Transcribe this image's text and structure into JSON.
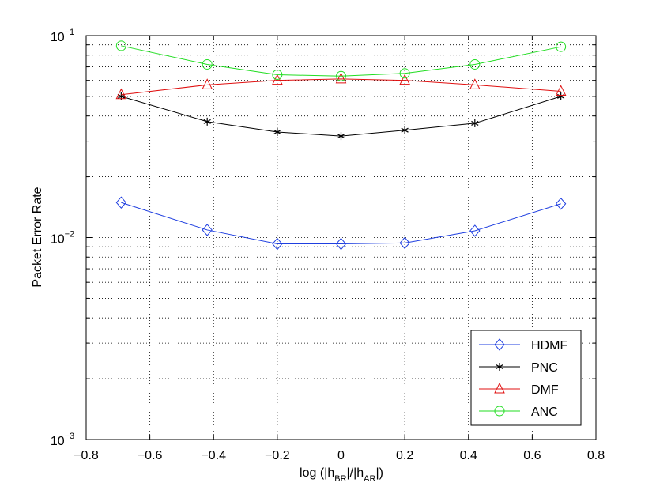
{
  "chart_data": {
    "type": "line",
    "title": "",
    "xlabel": {
      "main": "log (|h",
      "sub1": "BR",
      "mid": "|/|h",
      "sub2": "AR",
      "end": "|)"
    },
    "ylabel": "Packet Error Rate",
    "x_scale": "linear",
    "y_scale": "log",
    "xlim": [
      -0.8,
      0.8
    ],
    "ylim": [
      0.001,
      0.1
    ],
    "grid": true,
    "legend_position": "bottom-right",
    "x_ticks": [
      {
        "value": -0.8,
        "label": "−0.8"
      },
      {
        "value": -0.6,
        "label": "−0.6"
      },
      {
        "value": -0.4,
        "label": "−0.4"
      },
      {
        "value": -0.2,
        "label": "−0.2"
      },
      {
        "value": 0.0,
        "label": "0"
      },
      {
        "value": 0.2,
        "label": "0.2"
      },
      {
        "value": 0.4,
        "label": "0.4"
      },
      {
        "value": 0.6,
        "label": "0.6"
      },
      {
        "value": 0.8,
        "label": "0.8"
      }
    ],
    "y_ticks": [
      {
        "value": 0.001,
        "base": "10",
        "exp": "−3"
      },
      {
        "value": 0.01,
        "base": "10",
        "exp": "−2"
      },
      {
        "value": 0.1,
        "base": "10",
        "exp": "−1"
      }
    ],
    "x": [
      -0.69,
      -0.42,
      -0.2,
      0.0,
      0.2,
      0.42,
      0.69
    ],
    "series": [
      {
        "name": "HDMF",
        "color": "#1f3fe0",
        "marker": "diamond",
        "values": [
          0.0149,
          0.0109,
          0.0093,
          0.0093,
          0.0094,
          0.0108,
          0.0147
        ]
      },
      {
        "name": "PNC",
        "color": "#000000",
        "marker": "asterisk",
        "values": [
          0.05,
          0.0375,
          0.0333,
          0.0318,
          0.034,
          0.0368,
          0.05
        ]
      },
      {
        "name": "DMF",
        "color": "#e01010",
        "marker": "triangle",
        "values": [
          0.051,
          0.057,
          0.06,
          0.061,
          0.06,
          0.057,
          0.053
        ]
      },
      {
        "name": "ANC",
        "color": "#22dd22",
        "marker": "circle",
        "values": [
          0.089,
          0.072,
          0.064,
          0.063,
          0.065,
          0.072,
          0.088
        ]
      }
    ]
  }
}
